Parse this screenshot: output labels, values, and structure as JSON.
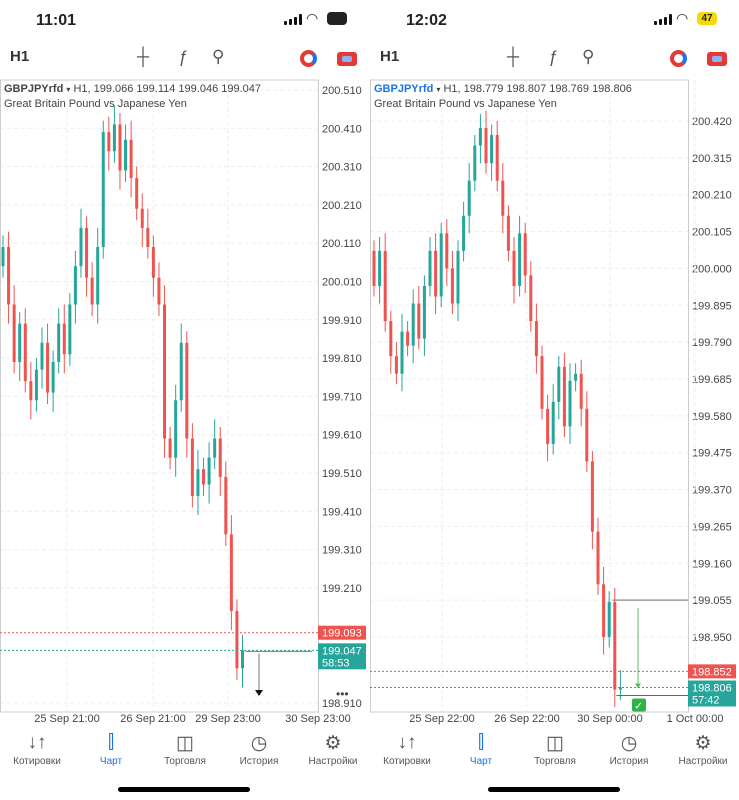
{
  "panels": [
    {
      "status_time": "11:01",
      "battery": "55",
      "battery_color": "#222",
      "timeframe": "H1",
      "symbol": "GBPJPYrfd",
      "symbol_color": "#444",
      "ohlc": "H1, 199.066 199.114 199.046 199.047",
      "description": "Great Britain Pound vs Japanese Yen",
      "price_ticks": [
        "200.510",
        "200.410",
        "200.310",
        "200.210",
        "200.110",
        "200.010",
        "199.910",
        "199.810",
        "199.710",
        "199.610",
        "199.510",
        "199.410",
        "199.310",
        "199.210",
        "198.910"
      ],
      "ask": "199.093",
      "bid": "199.047",
      "countdown": "58:53",
      "more": "•••",
      "dates": [
        "25 Sep 21:00",
        "26 Sep 21:00",
        "29 Sep 23:00",
        "30 Sep 23:00"
      ],
      "open": 200.05,
      "closes": [
        200.1,
        199.95,
        199.8,
        199.9,
        199.75,
        199.7,
        199.78,
        199.85,
        199.72,
        199.8,
        199.9,
        199.82,
        199.95,
        200.05,
        200.15,
        200.02,
        199.95,
        200.1,
        200.4,
        200.35,
        200.42,
        200.3,
        200.38,
        200.28,
        200.2,
        200.15,
        200.1,
        200.02,
        199.95,
        199.6,
        199.55,
        199.7,
        199.85,
        199.6,
        199.45,
        199.52,
        199.48,
        199.55,
        199.6,
        199.5,
        199.35,
        199.15,
        199.0,
        199.047
      ]
    },
    {
      "status_time": "12:02",
      "battery": "47",
      "battery_color": "#f5d90a",
      "timeframe": "H1",
      "symbol": "GBPJPYrfd",
      "symbol_color": "#1a73e8",
      "ohlc": "H1, 198.779 198.807 198.769 198.806",
      "description": "Great Britain Pound vs Japanese Yen",
      "price_ticks": [
        "200.420",
        "200.315",
        "200.210",
        "200.105",
        "200.000",
        "199.895",
        "199.790",
        "199.685",
        "199.580",
        "199.475",
        "199.370",
        "199.265",
        "199.160",
        "199.055",
        "198.950"
      ],
      "ask": "198.852",
      "bid": "198.806",
      "countdown": "57:42",
      "more": "",
      "dates": [
        "25 Sep 22:00",
        "26 Sep 22:00",
        "30 Sep 00:00",
        "1 Oct 00:00"
      ],
      "open": 200.05,
      "closes": [
        199.95,
        200.05,
        199.85,
        199.75,
        199.7,
        199.82,
        199.78,
        199.9,
        199.8,
        199.95,
        200.05,
        199.92,
        200.1,
        200.0,
        199.9,
        200.05,
        200.15,
        200.25,
        200.35,
        200.4,
        200.3,
        200.38,
        200.25,
        200.15,
        200.05,
        199.95,
        200.1,
        199.98,
        199.85,
        199.75,
        199.6,
        199.5,
        199.62,
        199.72,
        199.55,
        199.68,
        199.7,
        199.6,
        199.45,
        199.25,
        199.1,
        198.95,
        199.05,
        198.8,
        198.806
      ]
    }
  ],
  "toolbar": {
    "crosshair": "crosshair-icon",
    "function": "ƒ",
    "objects": "objects-icon"
  },
  "nav": [
    "Котировки",
    "Чарт",
    "Торговля",
    "История",
    "Настройки"
  ],
  "colors": {
    "bull": "#26a69a",
    "bear": "#ef5350",
    "accent": "#1a73e8"
  }
}
